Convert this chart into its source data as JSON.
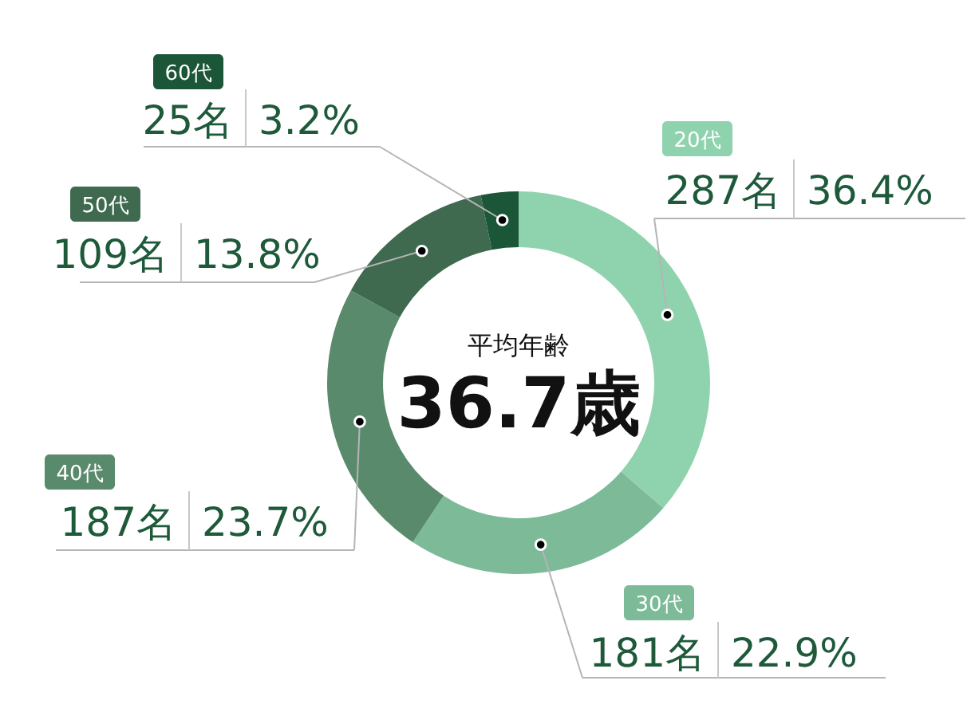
{
  "chart_data": {
    "type": "donut",
    "categories": [
      "20代",
      "30代",
      "40代",
      "50代",
      "60代"
    ],
    "values": [
      287,
      181,
      187,
      109,
      25
    ],
    "colors": [
      "#8fd3ae",
      "#7cba98",
      "#5a8a6c",
      "#3f6a50",
      "#1b5638"
    ],
    "value_labels": [
      "287名 36.4%",
      "181名 22.9%",
      "187名 23.7%",
      "109名 13.8%",
      "25名 3.2%"
    ],
    "annotations": [
      "平均年齢",
      "36.7歳"
    ]
  }
}
